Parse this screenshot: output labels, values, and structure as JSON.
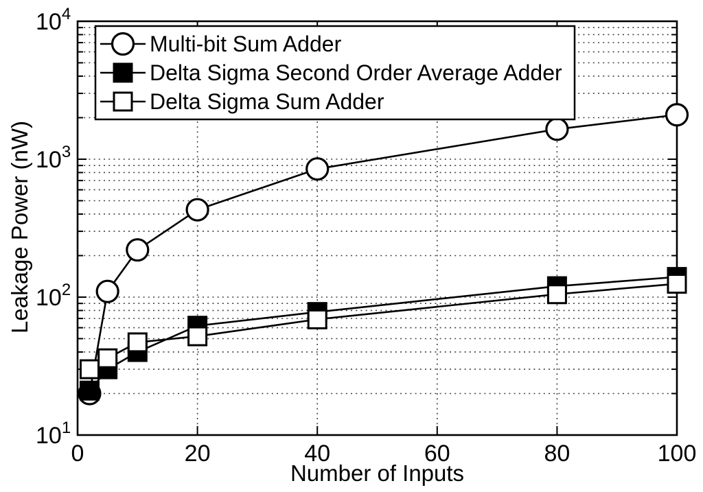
{
  "figure": {
    "background": "#ffffff",
    "axis_color": "#000000",
    "grid_color": "#3f3f3f",
    "series_color": "#000000",
    "legend_fill": "#ffffff"
  },
  "chart_data": {
    "type": "line",
    "title": "",
    "xlabel": "Number of Inputs",
    "ylabel": "Leakage Power (nW)",
    "x_scale": "linear",
    "y_scale": "log10",
    "xlim": [
      0,
      100
    ],
    "ylim": [
      10,
      10000
    ],
    "x_ticks": [
      0,
      20,
      40,
      60,
      80,
      100
    ],
    "x_tick_labels": [
      "0",
      "20",
      "40",
      "60",
      "80",
      "100"
    ],
    "y_ticks": [
      10,
      100,
      1000,
      10000
    ],
    "y_tick_labels": [
      {
        "base": "10",
        "exp": "1"
      },
      {
        "base": "10",
        "exp": "2"
      },
      {
        "base": "10",
        "exp": "3"
      },
      {
        "base": "10",
        "exp": "4"
      }
    ],
    "y_minor_ticks": [
      20,
      30,
      40,
      50,
      60,
      70,
      80,
      90,
      200,
      300,
      400,
      500,
      600,
      700,
      800,
      900,
      2000,
      3000,
      4000,
      5000,
      6000,
      7000,
      8000,
      9000
    ],
    "grid": {
      "style": "dotted",
      "vertical_at": [
        20,
        40,
        60,
        80
      ],
      "horizontal_major_at": [
        100,
        1000
      ],
      "horizontal_minor": "all log minors"
    },
    "legend": {
      "position": "top-left",
      "border": true
    },
    "x": [
      2,
      5,
      10,
      20,
      40,
      80,
      100
    ],
    "series": [
      {
        "name": "Multi-bit Sum Adder",
        "marker": "open-circle",
        "values": [
          20,
          110,
          220,
          430,
          850,
          1650,
          2100
        ]
      },
      {
        "name": "Delta Sigma Second Order Average Adder",
        "marker": "filled-square",
        "values": [
          21,
          30,
          40,
          62,
          78,
          120,
          140
        ]
      },
      {
        "name": "Delta Sigma Sum Adder",
        "marker": "open-square",
        "values": [
          30,
          36,
          47,
          52,
          69,
          105,
          125
        ]
      }
    ]
  }
}
